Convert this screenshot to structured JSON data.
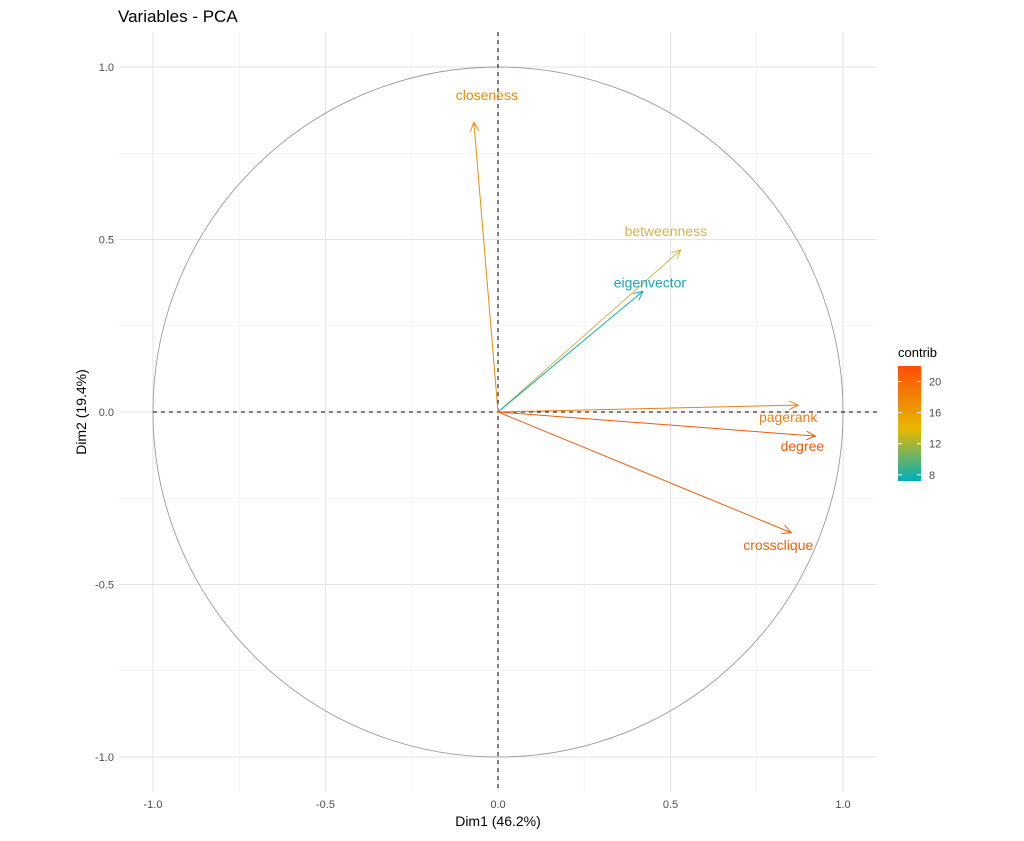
{
  "chart_data": {
    "type": "pca-variables-correlation-circle",
    "title": "Variables - PCA",
    "xlabel": "Dim1 (46.2%)",
    "ylabel": "Dim2 (19.4%)",
    "xlim": [
      -1.0,
      1.0
    ],
    "ylim": [
      -1.0,
      1.0
    ],
    "x_ticks": [
      {
        "value": -1.0,
        "label": "-1.0"
      },
      {
        "value": -0.5,
        "label": "-0.5"
      },
      {
        "value": 0.0,
        "label": "0.0"
      },
      {
        "value": 0.5,
        "label": "0.5"
      },
      {
        "value": 1.0,
        "label": "1.0"
      }
    ],
    "y_ticks": [
      {
        "value": 1.0,
        "label": "1.0"
      },
      {
        "value": 0.5,
        "label": "0.5"
      },
      {
        "value": 0.0,
        "label": "0.0"
      },
      {
        "value": -0.5,
        "label": "-0.5"
      },
      {
        "value": -1.0,
        "label": "-1.0"
      }
    ],
    "grid": true,
    "unit_circle": true,
    "reference_lines": "dashed at x=0 and y=0",
    "variables": [
      {
        "name": "closeness",
        "x": -0.07,
        "y": 0.84,
        "contrib": 18.5,
        "color": "#e78c0a"
      },
      {
        "name": "betweenness",
        "x": 0.53,
        "y": 0.47,
        "contrib": 13.5,
        "color": "#d4b54a"
      },
      {
        "name": "eigenvector",
        "x": 0.42,
        "y": 0.35,
        "contrib": 7.5,
        "color": "#12a9b8"
      },
      {
        "name": "pagerank",
        "x": 0.87,
        "y": 0.02,
        "contrib": 18.0,
        "color": "#e8801a"
      },
      {
        "name": "degree",
        "x": 0.92,
        "y": -0.07,
        "contrib": 21.0,
        "color": "#f05a0a"
      },
      {
        "name": "crossclique",
        "x": 0.85,
        "y": -0.35,
        "contrib": 20.5,
        "color": "#ef600c"
      }
    ],
    "legend": {
      "title": "contrib",
      "placement": "right",
      "ticks": [
        {
          "value": 20,
          "label": "20"
        },
        {
          "value": 16,
          "label": "16"
        },
        {
          "value": 12,
          "label": "12"
        },
        {
          "value": 8,
          "label": "8"
        }
      ],
      "range": [
        7.2,
        22.0
      ],
      "gradient": [
        "#00afbb",
        "#e7b800",
        "#fc4e07"
      ]
    }
  }
}
